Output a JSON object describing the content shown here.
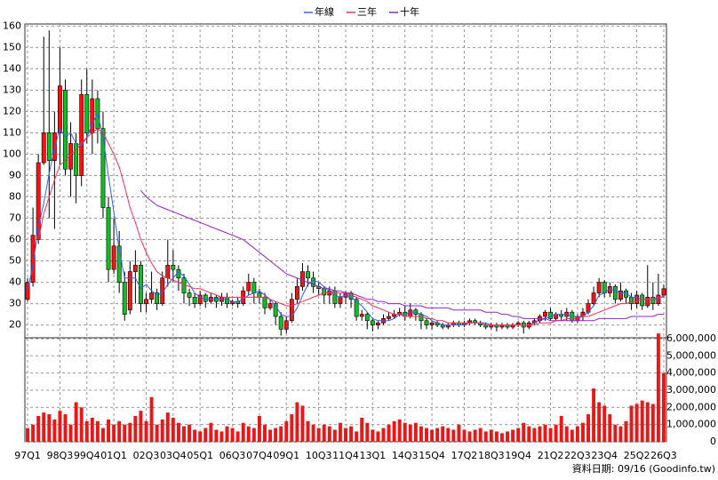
{
  "chart_data": {
    "type": "candlestick",
    "legend": [
      {
        "name": "年線",
        "color": "#2f5fff"
      },
      {
        "name": "三年",
        "color": "#ff2a55"
      },
      {
        "name": "十年",
        "color": "#9a1fd0"
      }
    ],
    "source": "資料日期: 09/16 (Goodinfo.tw)",
    "up_color": "#ff1010",
    "down_color": "#10c020",
    "volume_color": "#e81818",
    "grid": true,
    "categories": [
      "97Q1",
      null,
      null,
      null,
      null,
      null,
      "98Q3",
      null,
      null,
      null,
      null,
      "99Q4",
      null,
      null,
      null,
      null,
      "01Q1",
      null,
      null,
      null,
      null,
      null,
      "02Q3",
      null,
      null,
      null,
      null,
      "03Q4",
      null,
      null,
      null,
      null,
      "05Q1",
      null,
      null,
      null,
      null,
      null,
      "06Q3",
      null,
      null,
      null,
      null,
      "07Q4",
      null,
      null,
      null,
      null,
      "09Q1",
      null,
      null,
      null,
      null,
      null,
      "10Q3",
      null,
      null,
      null,
      null,
      "11Q4",
      null,
      null,
      null,
      null,
      "13Q1",
      null,
      null,
      null,
      null,
      null,
      "14Q3",
      null,
      null,
      null,
      null,
      "15Q4",
      null,
      null,
      null,
      null,
      null,
      "17Q2",
      null,
      null,
      null,
      null,
      "18Q3",
      null,
      null,
      null,
      null,
      "19Q4",
      null,
      null,
      null,
      null,
      null,
      "21Q2",
      null,
      null,
      null,
      null,
      "22Q3",
      null,
      null,
      null,
      null,
      "23Q4",
      null,
      null,
      null,
      null,
      null,
      "25Q2",
      null,
      null,
      null,
      null,
      "26Q3"
    ],
    "open": [
      32,
      40,
      60,
      96,
      110,
      97,
      110,
      130,
      93,
      105,
      90,
      128,
      110,
      126,
      112,
      75,
      46,
      57,
      40,
      27,
      45,
      48,
      30,
      32,
      35,
      30,
      42,
      48,
      46,
      42,
      35,
      33,
      30,
      34,
      31,
      33,
      31,
      33,
      30,
      31,
      30,
      36,
      40,
      35,
      33,
      28,
      30,
      24,
      18,
      22,
      32,
      38,
      45,
      42,
      38,
      37,
      34,
      36,
      30,
      33,
      35,
      32,
      24,
      25,
      22,
      20,
      21,
      23,
      24,
      25,
      26,
      24,
      27,
      25,
      22,
      20,
      21,
      20,
      19,
      20,
      21,
      20,
      21,
      22,
      21,
      20,
      19,
      20,
      19,
      20,
      19,
      20,
      21,
      19,
      21,
      22,
      24,
      26,
      23,
      25,
      24,
      26,
      22,
      24,
      26,
      30,
      35,
      40,
      35,
      38,
      32,
      36,
      33,
      30,
      34,
      29,
      33,
      30,
      34
    ],
    "high": [
      42,
      75,
      100,
      155,
      158,
      120,
      150,
      135,
      115,
      110,
      135,
      140,
      135,
      130,
      120,
      80,
      70,
      64,
      45,
      50,
      55,
      50,
      35,
      45,
      37,
      45,
      60,
      55,
      48,
      44,
      37,
      35,
      36,
      35,
      35,
      34,
      35,
      35,
      32,
      33,
      38,
      44,
      42,
      37,
      35,
      32,
      31,
      26,
      24,
      35,
      42,
      49,
      48,
      45,
      40,
      38,
      38,
      38,
      35,
      36,
      36,
      33,
      27,
      26,
      23,
      22,
      25,
      26,
      27,
      28,
      29,
      30,
      28,
      26,
      23,
      22,
      22,
      21,
      21,
      22,
      22,
      22,
      23,
      23,
      22,
      21,
      21,
      21,
      21,
      21,
      21,
      22,
      22,
      22,
      23,
      25,
      27,
      28,
      26,
      27,
      28,
      27,
      25,
      28,
      32,
      38,
      42,
      41,
      40,
      39,
      40,
      37,
      35,
      36,
      35,
      48,
      40,
      44,
      39
    ],
    "low": [
      31,
      38,
      58,
      95,
      70,
      65,
      95,
      90,
      80,
      77,
      85,
      105,
      100,
      105,
      70,
      40,
      44,
      35,
      22,
      25,
      30,
      26,
      26,
      30,
      27,
      29,
      38,
      40,
      36,
      30,
      29,
      28,
      29,
      28,
      30,
      28,
      29,
      28,
      29,
      28,
      29,
      34,
      30,
      30,
      25,
      27,
      20,
      15,
      16,
      21,
      30,
      36,
      38,
      35,
      34,
      30,
      30,
      28,
      28,
      30,
      28,
      22,
      22,
      18,
      17,
      18,
      20,
      22,
      23,
      24,
      22,
      23,
      22,
      18,
      18,
      18,
      19,
      18,
      18,
      19,
      19,
      19,
      20,
      20,
      19,
      18,
      18,
      17,
      18,
      18,
      18,
      19,
      16,
      18,
      20,
      21,
      22,
      22,
      22,
      22,
      22,
      21,
      21,
      22,
      25,
      29,
      33,
      33,
      33,
      30,
      31,
      30,
      27,
      28,
      27,
      28,
      27,
      29,
      33
    ],
    "close": [
      40,
      62,
      96,
      110,
      97,
      110,
      132,
      93,
      105,
      90,
      128,
      110,
      126,
      112,
      75,
      46,
      57,
      40,
      25,
      45,
      48,
      30,
      32,
      35,
      30,
      42,
      48,
      46,
      42,
      35,
      33,
      30,
      34,
      31,
      33,
      31,
      33,
      30,
      31,
      30,
      36,
      40,
      35,
      33,
      28,
      30,
      24,
      18,
      22,
      32,
      38,
      45,
      42,
      38,
      37,
      34,
      36,
      30,
      33,
      35,
      32,
      24,
      25,
      22,
      20,
      21,
      23,
      24,
      25,
      26,
      24,
      27,
      25,
      22,
      20,
      21,
      20,
      19,
      20,
      21,
      20,
      21,
      22,
      21,
      20,
      19,
      20,
      19,
      20,
      19,
      20,
      21,
      19,
      21,
      22,
      24,
      26,
      23,
      25,
      24,
      26,
      22,
      24,
      26,
      30,
      35,
      40,
      35,
      38,
      32,
      36,
      33,
      30,
      34,
      29,
      33,
      30,
      34,
      37
    ],
    "moving_averages": [
      {
        "values": [
          36,
          48,
          66,
          77,
          91,
          103,
          112,
          108,
          110,
          105,
          104,
          108,
          114,
          119,
          108,
          90,
          73,
          55,
          42,
          42,
          42,
          37,
          39,
          36,
          34,
          35,
          39,
          42,
          45,
          43,
          39,
          35,
          33,
          32,
          32,
          32,
          32,
          32,
          31,
          31,
          32,
          34,
          35,
          36,
          34,
          32,
          29,
          25,
          24,
          24,
          28,
          34,
          39,
          41,
          40,
          38,
          36,
          34,
          33,
          34,
          33,
          31,
          29,
          26,
          23,
          22,
          22,
          22,
          23,
          25,
          25,
          26,
          26,
          25,
          24,
          22,
          21,
          20,
          20,
          20,
          20,
          20,
          21,
          21,
          21,
          21,
          20,
          20,
          20,
          20,
          20,
          20,
          20,
          20,
          21,
          22,
          23,
          24,
          25,
          25,
          25,
          24,
          24,
          24,
          26,
          29,
          34,
          35,
          37,
          36,
          35,
          35,
          33,
          33,
          32,
          32,
          32,
          32,
          34
        ]
      },
      {
        "values": [
          null,
          null,
          60,
          72,
          80,
          88,
          95,
          97,
          100,
          102,
          105,
          108,
          110,
          112,
          110,
          105,
          100,
          94,
          85,
          75,
          68,
          60,
          54,
          49,
          45,
          43,
          42,
          41,
          40,
          39,
          38,
          37,
          37,
          36,
          35,
          34,
          33,
          33,
          33,
          33,
          33,
          33,
          33,
          33,
          33,
          32,
          31,
          30,
          29,
          29,
          30,
          31,
          32,
          33,
          34,
          35,
          35,
          35,
          35,
          35,
          34,
          33,
          32,
          31,
          29,
          28,
          27,
          26,
          25,
          25,
          24,
          24,
          24,
          24,
          23,
          23,
          22,
          22,
          21,
          21,
          21,
          21,
          21,
          21,
          21,
          20,
          20,
          20,
          20,
          20,
          20,
          20,
          20,
          20,
          20,
          21,
          21,
          21,
          22,
          22,
          23,
          23,
          23,
          24,
          24,
          25,
          26,
          27,
          28,
          29,
          30,
          30,
          31,
          31,
          32,
          32,
          32,
          33,
          33
        ]
      },
      {
        "values": [
          null,
          null,
          null,
          null,
          null,
          null,
          null,
          null,
          null,
          null,
          null,
          null,
          null,
          null,
          null,
          null,
          null,
          null,
          null,
          null,
          null,
          83,
          80,
          78,
          76,
          75,
          74,
          73,
          72,
          71,
          70,
          69,
          68,
          67,
          66,
          65,
          64,
          63,
          62,
          61,
          60,
          58,
          56,
          54,
          52,
          50,
          48,
          46,
          44,
          43,
          42,
          41,
          40,
          39,
          38,
          37,
          37,
          36,
          36,
          35,
          35,
          34,
          33,
          32,
          32,
          31,
          31,
          30,
          30,
          30,
          29,
          29,
          29,
          29,
          28,
          28,
          28,
          28,
          28,
          27,
          27,
          27,
          27,
          27,
          27,
          26,
          26,
          26,
          25,
          25,
          24,
          24,
          23,
          23,
          23,
          23,
          23,
          22,
          22,
          22,
          22,
          22,
          22,
          22,
          22,
          22,
          23,
          23,
          23,
          23,
          23,
          23,
          24,
          24,
          24,
          24,
          24,
          25,
          25
        ]
      }
    ],
    "volume": [
      800000,
      1000000,
      1500000,
      1700000,
      1600000,
      1300000,
      1800000,
      1600000,
      1000000,
      2300000,
      2000000,
      1200000,
      1400000,
      1200000,
      800000,
      1300000,
      1000000,
      1200000,
      1000000,
      1100000,
      1500000,
      1800000,
      1200000,
      2600000,
      1000000,
      1300000,
      1700000,
      1400000,
      1100000,
      900000,
      1000000,
      700000,
      600000,
      800000,
      1100000,
      700000,
      600000,
      900000,
      800000,
      600000,
      1100000,
      900000,
      800000,
      1500000,
      1000000,
      700000,
      800000,
      900000,
      1200000,
      1600000,
      2300000,
      2100000,
      1200000,
      1000000,
      800000,
      1000000,
      900000,
      700000,
      1100000,
      800000,
      900000,
      600000,
      1400000,
      1100000,
      700000,
      600000,
      800000,
      1000000,
      1200000,
      1300000,
      1100000,
      1000000,
      1100000,
      900000,
      800000,
      700000,
      800000,
      900000,
      800000,
      700000,
      1000000,
      700000,
      600000,
      700000,
      800000,
      600000,
      700000,
      600000,
      500000,
      600000,
      700000,
      800000,
      1100000,
      900000,
      800000,
      900000,
      1000000,
      800000,
      1000000,
      1500000,
      900000,
      700000,
      900000,
      1100000,
      1600000,
      3100000,
      2300000,
      2100000,
      1600000,
      1000000,
      900000,
      1200000,
      2100000,
      2200000,
      2400000,
      2300000,
      2200000,
      6300000,
      4000000
    ],
    "ylim": [
      14,
      161
    ],
    "yticks": [
      20,
      30,
      40,
      50,
      60,
      70,
      80,
      90,
      100,
      110,
      120,
      130,
      140,
      150,
      160
    ],
    "y2lim": [
      0,
      6050000
    ],
    "y2ticks": [
      0,
      {
        "value": 1000000,
        "label": "1,000,000"
      },
      {
        "value": 2000000,
        "label": "2,000,000"
      },
      {
        "value": 3000000,
        "label": "3,000,000"
      },
      {
        "value": 4000000,
        "label": "4,000,000"
      },
      {
        "value": 5000000,
        "label": "5,000,000"
      },
      {
        "value": 6000000,
        "label": "6,000,000"
      }
    ]
  }
}
